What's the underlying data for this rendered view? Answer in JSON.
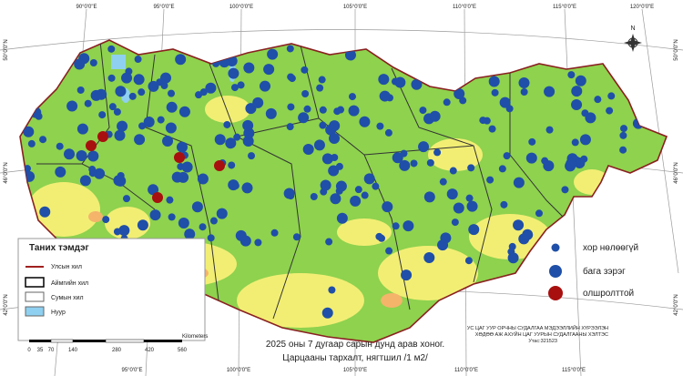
{
  "graticule": {
    "top": [
      "90°0'0\"E",
      "95°0'0\"E",
      "100°0'0\"E",
      "105°0'0\"E",
      "110°0'0\"E",
      "115°0'0\"E",
      "120°0'0\"E"
    ],
    "bottom": [
      "95°0'0\"E",
      "100°0'0\"E",
      "105°0'0\"E",
      "110°0'0\"E",
      "115°0'0\"E"
    ],
    "left": [
      "50°0'0\"N",
      "46°0'0\"N",
      "42°0'0\"N"
    ],
    "right": [
      "50°0'0\"N",
      "46°0'0\"N",
      "42°0'0\"N"
    ]
  },
  "compass": "N",
  "legend": {
    "title": "Таних тэмдэг",
    "items": [
      "Улсын хил",
      "Аймгийн хил",
      "Сумын хил",
      "Нуур"
    ]
  },
  "density_legend": [
    "хор нөлөөгүй",
    "бага зэрэг",
    "олшролттой"
  ],
  "scale_bar": {
    "unit": "Kilometers",
    "ticks": [
      "0",
      "35",
      "70",
      "140",
      "280",
      "420",
      "560"
    ]
  },
  "title": [
    "2025 оны 7 дугаар сарын дунд арав хоног.",
    "Царцааны тархалт, нягтшил /1 м2/"
  ],
  "credit": [
    "УС ЦАГ УУР ОРЧНЫ СУДАЛГАА МЭДЭЭЛЛИЙН ХҮРЭЭЛЭН",
    "ХӨДӨӨ АЖ АХУЙН ЦАГ УУРЫН СУДАЛГААНЫ ХЭЛТЭС",
    "Утас:321523"
  ]
}
